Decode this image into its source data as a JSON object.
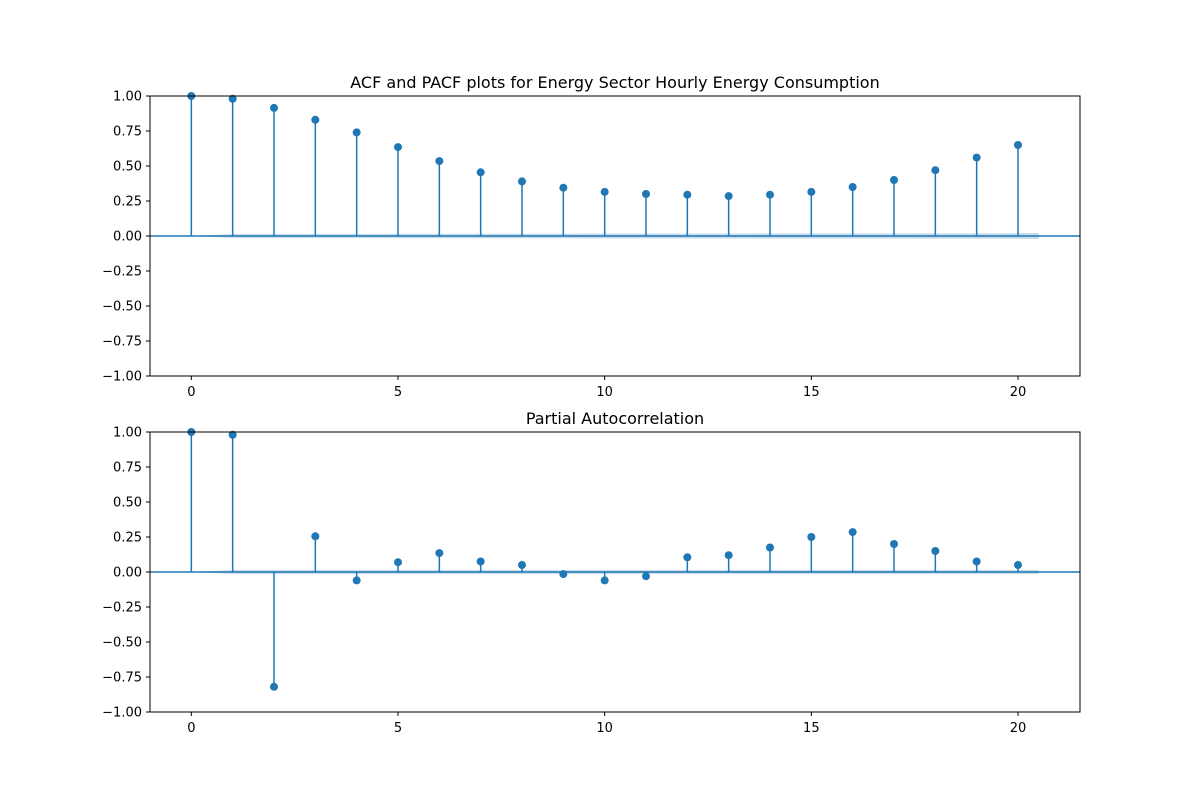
{
  "chart_data": [
    {
      "type": "stem",
      "title": "ACF and PACF plots for Energy Sector Hourly Energy Consumption",
      "xlabel": "",
      "ylabel": "",
      "x": [
        0,
        1,
        2,
        3,
        4,
        5,
        6,
        7,
        8,
        9,
        10,
        11,
        12,
        13,
        14,
        15,
        16,
        17,
        18,
        19,
        20
      ],
      "values": [
        1.0,
        0.98,
        0.915,
        0.83,
        0.74,
        0.635,
        0.535,
        0.455,
        0.39,
        0.345,
        0.315,
        0.3,
        0.295,
        0.285,
        0.295,
        0.315,
        0.35,
        0.4,
        0.47,
        0.56,
        0.65
      ],
      "confidence_band": [
        0.0,
        0.014,
        0.014,
        0.015,
        0.015,
        0.016,
        0.016,
        0.017,
        0.017,
        0.017,
        0.018,
        0.018,
        0.018,
        0.018,
        0.019,
        0.019,
        0.019,
        0.019,
        0.02,
        0.02,
        0.021
      ],
      "xlim": [
        -1,
        21.5
      ],
      "ylim": [
        -1.0,
        1.0
      ],
      "xticks": [
        0,
        5,
        10,
        15,
        20
      ],
      "yticks": [
        1.0,
        0.75,
        0.5,
        0.25,
        0.0,
        -0.25,
        -0.5,
        -0.75,
        -1.0
      ],
      "ytick_labels": [
        "1.00",
        "0.75",
        "0.50",
        "0.25",
        "0.00",
        "−0.25",
        "−0.50",
        "−0.75",
        "−1.00"
      ],
      "grid": false,
      "color": "#1f77b4"
    },
    {
      "type": "stem",
      "title": "Partial Autocorrelation",
      "xlabel": "",
      "ylabel": "",
      "x": [
        0,
        1,
        2,
        3,
        4,
        5,
        6,
        7,
        8,
        9,
        10,
        11,
        12,
        13,
        14,
        15,
        16,
        17,
        18,
        19,
        20
      ],
      "values": [
        1.0,
        0.98,
        -0.82,
        0.255,
        -0.06,
        0.07,
        0.135,
        0.075,
        0.05,
        -0.015,
        -0.06,
        -0.03,
        0.105,
        0.12,
        0.175,
        0.25,
        0.285,
        0.2,
        0.15,
        0.075,
        0.05
      ],
      "confidence_band": [
        0.0,
        0.014,
        0.014,
        0.014,
        0.014,
        0.014,
        0.014,
        0.014,
        0.014,
        0.014,
        0.014,
        0.014,
        0.014,
        0.014,
        0.014,
        0.014,
        0.014,
        0.014,
        0.014,
        0.014,
        0.014
      ],
      "xlim": [
        -1,
        21.5
      ],
      "ylim": [
        -1.0,
        1.0
      ],
      "xticks": [
        0,
        5,
        10,
        15,
        20
      ],
      "yticks": [
        1.0,
        0.75,
        0.5,
        0.25,
        0.0,
        -0.25,
        -0.5,
        -0.75,
        -1.0
      ],
      "ytick_labels": [
        "1.00",
        "0.75",
        "0.50",
        "0.25",
        "0.00",
        "−0.25",
        "−0.50",
        "−0.75",
        "−1.00"
      ],
      "grid": false,
      "color": "#1f77b4"
    }
  ]
}
